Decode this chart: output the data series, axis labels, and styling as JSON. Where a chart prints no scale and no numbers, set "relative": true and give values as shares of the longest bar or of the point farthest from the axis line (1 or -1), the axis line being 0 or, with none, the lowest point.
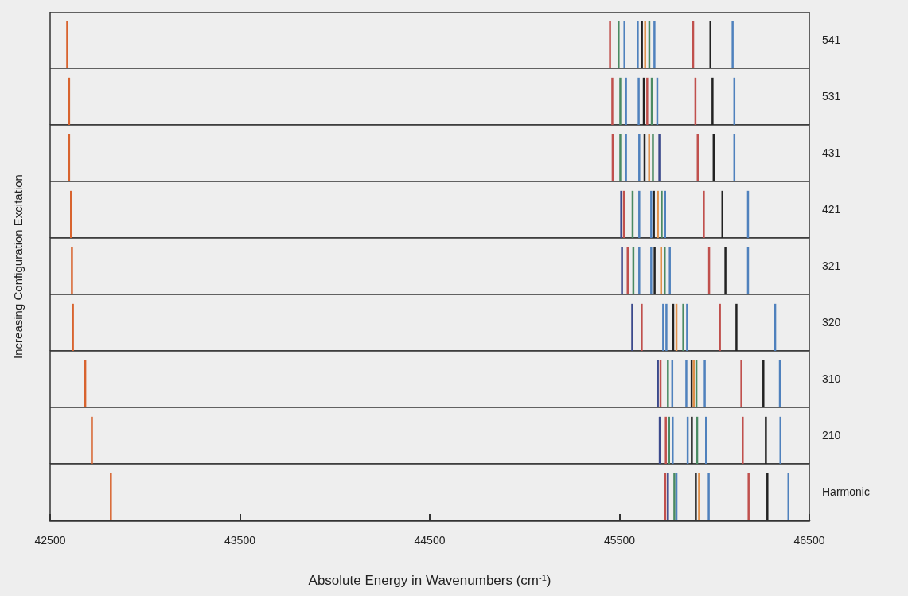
{
  "chart_data": [
    {
      "type": "bar",
      "relative": true,
      "tick_labels": false,
      "xlim": [
        42500,
        46500
      ],
      "x": [
        42590,
        45450,
        45495,
        45526,
        45596,
        45618,
        45635,
        45657,
        45684,
        45888,
        45979,
        46096
      ],
      "series": [
        {
          "name": "541",
          "values": [
            1,
            1,
            1,
            1,
            1,
            1,
            1,
            1,
            1,
            1,
            1,
            1
          ],
          "colors": [
            "#d8632e",
            "#c0504d",
            "#4a8a62",
            "#4f81bd",
            "#4f81bd",
            "#222222",
            "#e0904a",
            "#4a8a62",
            "#4f81bd",
            "#c0504d",
            "#222222",
            "#4f81bd"
          ]
        }
      ]
    },
    {
      "type": "bar",
      "relative": true,
      "tick_labels": false,
      "xlim": [
        42500,
        46500
      ],
      "x": [
        42600,
        45462,
        45504,
        45534,
        45601,
        45628,
        45646,
        45670,
        45699,
        45900,
        45990,
        46105
      ],
      "series": [
        {
          "name": "531",
          "values": [
            1,
            1,
            1,
            1,
            1,
            1,
            1,
            1,
            1,
            1,
            1,
            1
          ],
          "colors": [
            "#d8632e",
            "#c0504d",
            "#4a8a62",
            "#4f81bd",
            "#4f81bd",
            "#222222",
            "#c0504d",
            "#4a8a62",
            "#4f81bd",
            "#c0504d",
            "#222222",
            "#4f81bd"
          ]
        }
      ]
    },
    {
      "type": "bar",
      "relative": true,
      "tick_labels": false,
      "xlim": [
        42500,
        46500
      ],
      "x": [
        42600,
        45464,
        45504,
        45534,
        45604,
        45632,
        45656,
        45676,
        45710,
        45912,
        45996,
        46105
      ],
      "series": [
        {
          "name": "431",
          "values": [
            1,
            1,
            1,
            1,
            1,
            1,
            1,
            1,
            1,
            1,
            1,
            1
          ],
          "colors": [
            "#d8632e",
            "#c0504d",
            "#4a8a62",
            "#4f81bd",
            "#4f81bd",
            "#222222",
            "#e0904a",
            "#4a8a62",
            "#3b4a8c",
            "#c0504d",
            "#222222",
            "#4f81bd"
          ]
        }
      ]
    },
    {
      "type": "bar",
      "relative": true,
      "tick_labels": false,
      "xlim": [
        42500,
        46500
      ],
      "x": [
        42610,
        45509,
        45523,
        45569,
        45604,
        45667,
        45681,
        45702,
        45722,
        45740,
        45944,
        46042,
        46177
      ],
      "series": [
        {
          "name": "421",
          "values": [
            1,
            1,
            1,
            1,
            1,
            1,
            1,
            1,
            1,
            1,
            1,
            1,
            1
          ],
          "colors": [
            "#d8632e",
            "#3b4a8c",
            "#c0504d",
            "#4a8a62",
            "#4f81bd",
            "#4f81bd",
            "#222222",
            "#e0904a",
            "#4a8a62",
            "#4f81bd",
            "#c0504d",
            "#222222",
            "#4f81bd"
          ]
        }
      ]
    },
    {
      "type": "bar",
      "relative": true,
      "tick_labels": false,
      "ylabel": "Increasing Configuration Excitation",
      "xlim": [
        42500,
        46500
      ],
      "x": [
        42615,
        45513,
        45543,
        45573,
        45604,
        45667,
        45685,
        45719,
        45738,
        45765,
        45972,
        46058,
        46177
      ],
      "series": [
        {
          "name": "321",
          "values": [
            1,
            1,
            1,
            1,
            1,
            1,
            1,
            1,
            1,
            1,
            1,
            1,
            1
          ],
          "colors": [
            "#d8632e",
            "#3b4a8c",
            "#c0504d",
            "#4a8a62",
            "#4f81bd",
            "#4f81bd",
            "#222222",
            "#e0904a",
            "#4a8a62",
            "#4f81bd",
            "#c0504d",
            "#222222",
            "#4f81bd"
          ]
        }
      ]
    },
    {
      "type": "bar",
      "relative": true,
      "tick_labels": false,
      "xlim": [
        42500,
        46500
      ],
      "x": [
        42620,
        45567,
        45617,
        45730,
        45747,
        45783,
        45800,
        45836,
        45856,
        46029,
        46116,
        46320
      ],
      "series": [
        {
          "name": "320",
          "values": [
            1,
            1,
            1,
            1,
            1,
            1,
            1,
            1,
            1,
            1,
            1,
            1
          ],
          "colors": [
            "#d8632e",
            "#3b4a8c",
            "#c0504d",
            "#4f81bd",
            "#4f81bd",
            "#222222",
            "#e0904a",
            "#4a8a62",
            "#4f81bd",
            "#c0504d",
            "#222222",
            "#4f81bd"
          ]
        }
      ]
    },
    {
      "type": "bar",
      "relative": true,
      "tick_labels": false,
      "xlim": [
        42500,
        46500
      ],
      "x": [
        42685,
        45702,
        45716,
        45755,
        45778,
        45852,
        45880,
        45891,
        45905,
        45949,
        46142,
        46258,
        46345
      ],
      "series": [
        {
          "name": "310",
          "values": [
            1,
            1,
            1,
            1,
            1,
            1,
            1,
            1,
            1,
            1,
            1,
            1,
            1
          ],
          "colors": [
            "#d8632e",
            "#3b4a8c",
            "#c0504d",
            "#4a8a62",
            "#4f81bd",
            "#4f81bd",
            "#222222",
            "#e0904a",
            "#4a8a62",
            "#4f81bd",
            "#c0504d",
            "#222222",
            "#4f81bd"
          ]
        }
      ]
    },
    {
      "type": "bar",
      "relative": true,
      "tick_labels": false,
      "xlim": [
        42500,
        46500
      ],
      "x": [
        42720,
        45712,
        45744,
        45761,
        45780,
        45859,
        45881,
        45909,
        45956,
        46149,
        46271,
        46348
      ],
      "series": [
        {
          "name": "210",
          "values": [
            1,
            1,
            1,
            1,
            1,
            1,
            1,
            1,
            1,
            1,
            1,
            1
          ],
          "colors": [
            "#d8632e",
            "#3b4a8c",
            "#c0504d",
            "#4a8a62",
            "#4f81bd",
            "#4f81bd",
            "#222222",
            "#4a8a62",
            "#4f81bd",
            "#c0504d",
            "#222222",
            "#4f81bd"
          ]
        }
      ]
    },
    {
      "type": "bar",
      "relative": true,
      "tick_labels": "x",
      "xlabel": "Absolute Energy in Wavenumbers (cm$^{-1}$)",
      "xlim": [
        42500,
        46500
      ],
      "xticks": [
        42500,
        43500,
        44500,
        45500,
        46500
      ],
      "x": [
        42820,
        45741,
        45755,
        45789,
        45800,
        45902,
        45919,
        45970,
        46180,
        46279,
        46390
      ],
      "series": [
        {
          "name": "Harmonic",
          "values": [
            1,
            1,
            1,
            1,
            1,
            1,
            1,
            1,
            1,
            1,
            1
          ],
          "colors": [
            "#d8632e",
            "#c0504d",
            "#3b4a8c",
            "#4a8a62",
            "#4f81bd",
            "#222222",
            "#e0904a",
            "#4f81bd",
            "#c0504d",
            "#222222",
            "#4f81bd"
          ]
        }
      ]
    }
  ]
}
